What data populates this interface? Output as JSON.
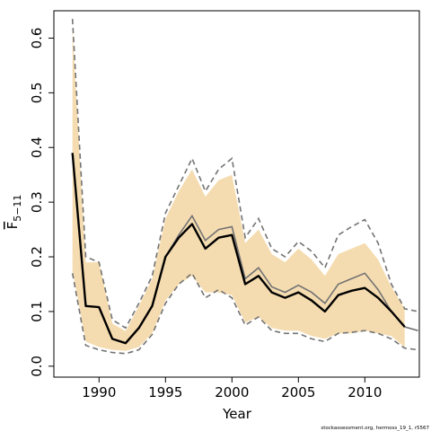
{
  "chart_data": {
    "type": "line",
    "xlabel": "Year",
    "ylabel_main": "F",
    "ylabel_sub": "5−11",
    "credit": "stockassessment.org, hermoss_19_1, r5567",
    "xlim": [
      1986.6,
      2014.1
    ],
    "ylim": [
      -0.02,
      0.65
    ],
    "x_ticks": [
      1990,
      1995,
      2000,
      2005,
      2010
    ],
    "y_ticks": [
      0.0,
      0.1,
      0.2,
      0.3,
      0.4,
      0.5,
      0.6
    ],
    "y_tick_labels": [
      "0.0",
      "0.1",
      "0.2",
      "0.3",
      "0.4",
      "0.5",
      "0.6"
    ],
    "colors": {
      "band": "#f5dcb0",
      "estimate": "#000000",
      "ci_dashed": "#737373",
      "reference": "#737373"
    },
    "x": [
      1988,
      1989,
      1990,
      1991,
      1992,
      1993,
      1994,
      1995,
      1996,
      1997,
      1998,
      1999,
      2000,
      2001,
      2002,
      2003,
      2004,
      2005,
      2006,
      2007,
      2008,
      2009,
      2010,
      2011,
      2012,
      2013,
      2014
    ],
    "series": [
      {
        "key": "band_upper",
        "values": [
          0.62,
          0.19,
          0.19,
          0.078,
          0.064,
          0.11,
          0.16,
          0.27,
          0.32,
          0.36,
          0.31,
          0.34,
          0.35,
          0.225,
          0.25,
          0.205,
          0.19,
          0.215,
          0.195,
          0.165,
          0.205,
          0.215,
          0.225,
          0.195,
          0.145,
          0.105,
          null
        ]
      },
      {
        "key": "band_lower",
        "values": [
          0.175,
          0.045,
          0.035,
          0.03,
          0.028,
          0.035,
          0.06,
          0.12,
          0.15,
          0.165,
          0.135,
          0.135,
          0.13,
          0.08,
          0.09,
          0.07,
          0.065,
          0.065,
          0.055,
          0.05,
          0.06,
          0.06,
          0.065,
          0.06,
          0.055,
          0.035,
          null
        ]
      },
      {
        "key": "upper_dashed",
        "values": [
          0.635,
          0.2,
          0.19,
          0.085,
          0.07,
          0.115,
          0.165,
          0.28,
          0.33,
          0.38,
          0.32,
          0.36,
          0.38,
          0.235,
          0.27,
          0.215,
          0.2,
          0.228,
          0.21,
          0.18,
          0.24,
          0.255,
          0.268,
          0.225,
          0.15,
          0.105,
          0.1
        ]
      },
      {
        "key": "lower_dashed",
        "values": [
          0.17,
          0.038,
          0.03,
          0.025,
          0.023,
          0.03,
          0.058,
          0.115,
          0.15,
          0.17,
          0.125,
          0.14,
          0.125,
          0.075,
          0.09,
          0.065,
          0.06,
          0.06,
          0.05,
          0.045,
          0.06,
          0.062,
          0.065,
          0.06,
          0.05,
          0.033,
          0.03
        ]
      },
      {
        "key": "reference_line",
        "values": [
          null,
          null,
          null,
          null,
          null,
          null,
          null,
          0.2,
          0.24,
          0.275,
          0.23,
          0.25,
          0.255,
          0.16,
          0.18,
          0.145,
          0.135,
          0.148,
          0.135,
          0.115,
          0.15,
          0.16,
          0.17,
          0.14,
          0.1,
          0.072,
          0.065
        ]
      },
      {
        "key": "estimate",
        "values": [
          0.39,
          0.11,
          0.108,
          0.05,
          0.042,
          0.07,
          0.11,
          0.2,
          0.235,
          0.26,
          0.215,
          0.235,
          0.24,
          0.15,
          0.165,
          0.135,
          0.125,
          0.135,
          0.12,
          0.1,
          0.13,
          0.138,
          0.143,
          0.125,
          0.1,
          0.072,
          null
        ]
      }
    ]
  }
}
